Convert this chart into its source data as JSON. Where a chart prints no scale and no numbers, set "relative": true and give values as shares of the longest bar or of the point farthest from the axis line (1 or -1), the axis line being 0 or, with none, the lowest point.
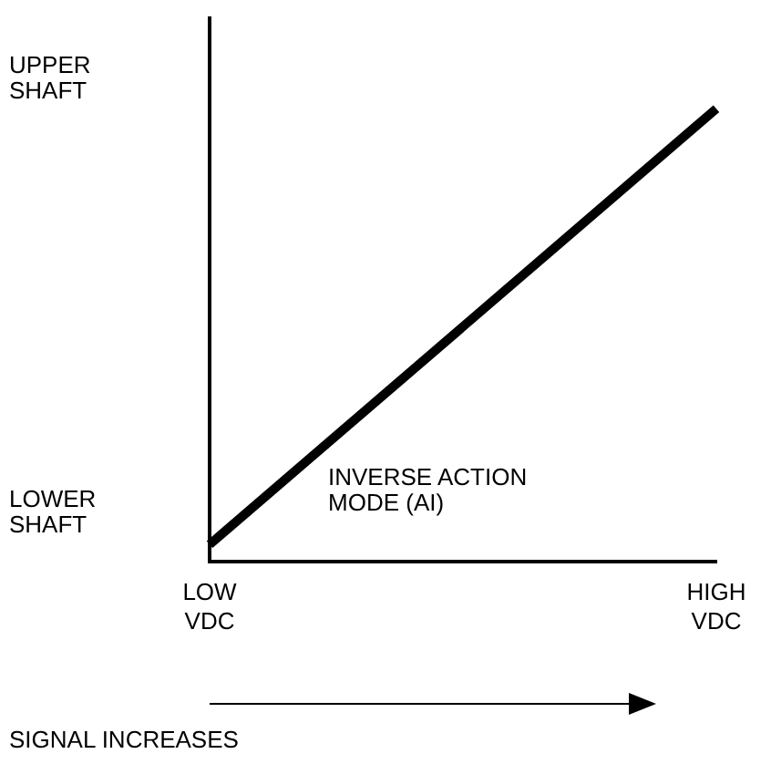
{
  "chart_data": {
    "type": "line",
    "xlabel": "SIGNAL INCREASES",
    "relative": true,
    "annotations": [
      "UPPER SHAFT",
      "LOWER SHAFT",
      "INVERSE ACTION MODE (AI)"
    ],
    "categories": [
      "LOW VDC",
      "HIGH VDC"
    ],
    "series": [
      {
        "color": "#000000",
        "values": [
          0.037,
          1
        ]
      }
    ],
    "marker": "none"
  }
}
